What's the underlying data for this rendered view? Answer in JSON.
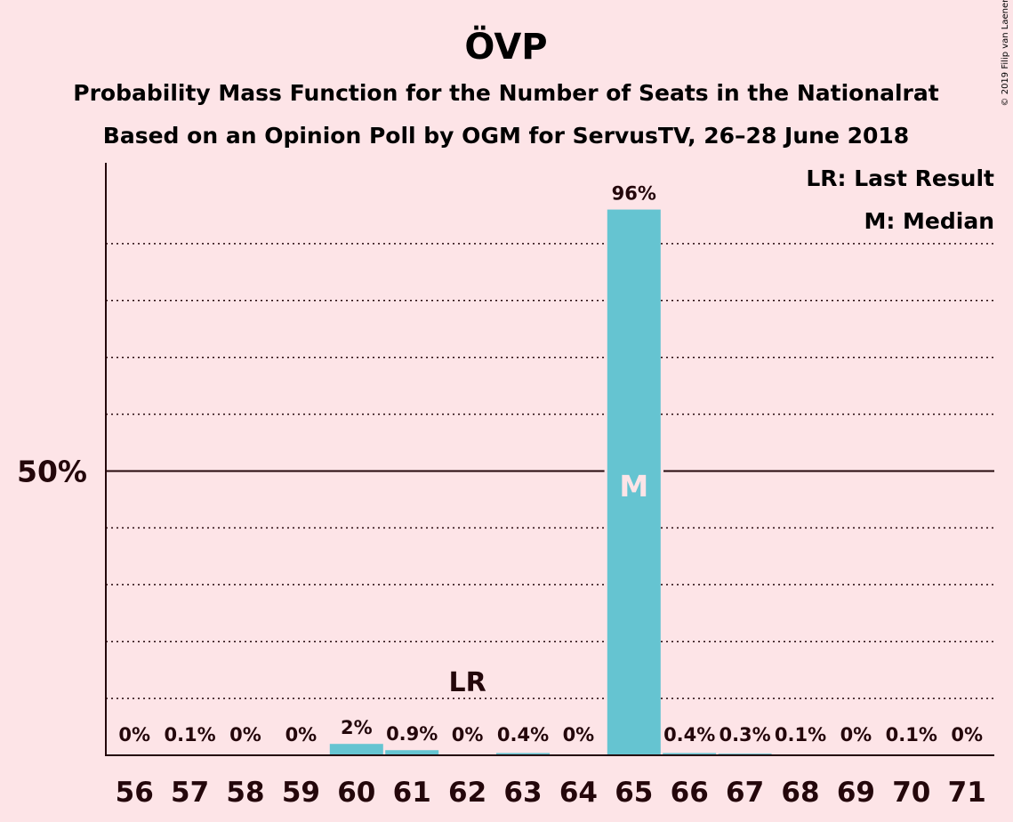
{
  "chart_data": {
    "type": "bar",
    "title": "ÖVP",
    "subtitle_lines": [
      "Probability Mass Function for the Number of Seats in the Nationalrat",
      "Based on an Opinion Poll by OGM for ServusTV, 26–28 June 2018"
    ],
    "categories": [
      "56",
      "57",
      "58",
      "59",
      "60",
      "61",
      "62",
      "63",
      "64",
      "65",
      "66",
      "67",
      "68",
      "69",
      "70",
      "71"
    ],
    "values": [
      0,
      0.1,
      0,
      0,
      2,
      0.9,
      0,
      0.4,
      0,
      96,
      0.4,
      0.3,
      0.1,
      0,
      0.1,
      0
    ],
    "data_labels": [
      "0%",
      "0.1%",
      "0%",
      "0%",
      "2%",
      "0.9%",
      "0%",
      "0.4%",
      "0%",
      "96%",
      "0.4%",
      "0.3%",
      "0.1%",
      "0%",
      "0.1%",
      "0%"
    ],
    "ylim": [
      0,
      100
    ],
    "yticks": [
      {
        "value": 50,
        "label": "50%"
      }
    ],
    "grid_step": 10,
    "grid": true,
    "bar_color": "#65c4d1",
    "background_color": "#fde4e7",
    "text_color": "#24070b",
    "last_result": {
      "category": "62",
      "label": "LR"
    },
    "median": {
      "category": "65",
      "label": "M"
    },
    "legend": {
      "placement": "top-right",
      "entries": [
        "LR: Last Result",
        "M: Median"
      ]
    },
    "copyright": "© 2019 Filip van Laenen"
  }
}
